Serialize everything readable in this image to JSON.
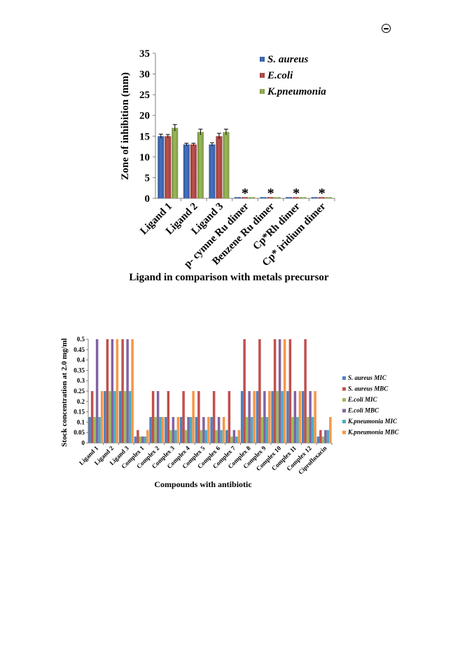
{
  "page_mark": {
    "icon": "circle-dash-icon"
  },
  "chart_data": [
    {
      "type": "bar",
      "title": "",
      "xlabel": "Ligand in comparison with metals precursor",
      "ylabel": "Zone of inhibition (mm)",
      "ylim": [
        0,
        35
      ],
      "yticks": [
        0,
        5,
        10,
        15,
        20,
        25,
        30,
        35
      ],
      "grid": false,
      "legend_position": "top-right",
      "categories": [
        "Ligand 1",
        "Ligand 2",
        "Ligand 3",
        "p- cymne Ru dimer",
        "Benzene Ru dimer",
        "Cp*Rh dimer",
        "Cp* iridium dimer"
      ],
      "series": [
        {
          "name": "S. aureus",
          "color": "#4472c4",
          "values": [
            15,
            13,
            13,
            0.3,
            0.3,
            0.3,
            0.3
          ],
          "errors": [
            0.5,
            0.3,
            0.4,
            0,
            0,
            0,
            0
          ]
        },
        {
          "name": "E.coli",
          "color": "#c0504d",
          "values": [
            15,
            13,
            15,
            0.3,
            0.3,
            0.3,
            0.3
          ],
          "errors": [
            0.4,
            0.3,
            0.7,
            0,
            0,
            0,
            0
          ]
        },
        {
          "name": "K.pneumonia",
          "color": "#9bbb59",
          "values": [
            17,
            16,
            16,
            0.3,
            0.3,
            0.3,
            0.3
          ],
          "errors": [
            0.8,
            0.7,
            0.7,
            0,
            0,
            0,
            0
          ]
        }
      ],
      "annotations": [
        {
          "category": "p- cymne Ru dimer",
          "text": "*"
        },
        {
          "category": "Benzene Ru dimer",
          "text": "*"
        },
        {
          "category": "Cp*Rh dimer",
          "text": "*"
        },
        {
          "category": "Cp* iridium dimer",
          "text": "*"
        }
      ]
    },
    {
      "type": "bar",
      "title": "",
      "xlabel": "Compounds with antibiotic",
      "ylabel": "Stock concentration at 2.0 mg/ml",
      "ylim": [
        0,
        0.5
      ],
      "yticks": [
        "0",
        "0.05",
        "0.1",
        "0.15",
        "0.2",
        "0.25",
        "0.3",
        "0.35",
        "0.4",
        "0.45",
        "0.5"
      ],
      "grid": false,
      "legend_position": "right",
      "categories": [
        "Ligand 1",
        "Ligand 2",
        "Ligand 3",
        "Complex 1",
        "Complex 2",
        "Complex 3",
        "Complex 4",
        "Complex 5",
        "Complex 6",
        "Complex 7",
        "Complex 8",
        "Complex 9",
        "Complex 10",
        "Complex 11",
        "Complex 12",
        "Ciprofloxacin"
      ],
      "series": [
        {
          "name": "S. aureus MIC",
          "color": "#4f81bd",
          "values": [
            0.125,
            0.25,
            0.25,
            0.031,
            0.125,
            0.125,
            0.125,
            0.125,
            0.125,
            0.062,
            0.25,
            0.25,
            0.25,
            0.25,
            0.25,
            0.031
          ]
        },
        {
          "name": "S. aureus MBC",
          "color": "#c0504d",
          "values": [
            0.25,
            0.5,
            0.5,
            0.062,
            0.25,
            0.25,
            0.25,
            0.25,
            0.25,
            0.25,
            0.5,
            0.5,
            0.5,
            0.5,
            0.5,
            0.062
          ]
        },
        {
          "name": "E.coli MIC",
          "color": "#9bbb59",
          "values": [
            0.125,
            0.25,
            0.25,
            0.031,
            0.125,
            0.062,
            0.062,
            0.062,
            0.062,
            0.031,
            0.125,
            0.125,
            0.25,
            0.125,
            0.125,
            0.031
          ]
        },
        {
          "name": "E.coli MBC",
          "color": "#8064a2",
          "values": [
            0.5,
            0.5,
            0.5,
            0.031,
            0.25,
            0.125,
            0.125,
            0.125,
            0.125,
            0.062,
            0.25,
            0.25,
            0.5,
            0.25,
            0.25,
            0.062
          ]
        },
        {
          "name": "K.pneumonia MIC",
          "color": "#4bacc6",
          "values": [
            0.125,
            0.25,
            0.25,
            0.031,
            0.125,
            0.062,
            0.125,
            0.062,
            0.062,
            0.031,
            0.125,
            0.125,
            0.25,
            0.125,
            0.125,
            0.062
          ]
        },
        {
          "name": "K.pneumonia MBC",
          "color": "#f79646",
          "values": [
            0.25,
            0.5,
            0.5,
            0.062,
            0.125,
            0.125,
            0.25,
            0.125,
            0.125,
            0.062,
            0.25,
            0.25,
            0.5,
            0.25,
            0.25,
            0.125
          ]
        }
      ]
    }
  ]
}
